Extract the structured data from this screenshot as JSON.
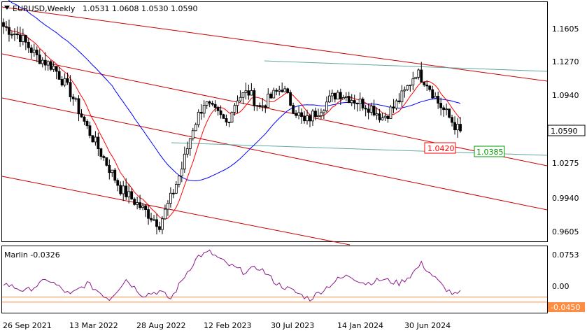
{
  "header": {
    "symbol": "EURUSD,Weekly",
    "ohlc": "1.0531 1.0608 1.0530 1.0590"
  },
  "indicator": {
    "label": "Marlin -0.0326"
  },
  "colors": {
    "candle": "#000000",
    "ma_red": "#ff0000",
    "ma_blue": "#0000ff",
    "channel": "#cc0000",
    "teal": "#5fa8a0",
    "oscillator": "#8b1a8b",
    "level_orange": "#ff8c40",
    "label_red": "#ff0000",
    "label_green": "#009900"
  },
  "chart_data": [
    {
      "type": "candlestick",
      "title": "EURUSD,Weekly 1.0531 1.0608 1.0530 1.0590",
      "x_ticks": [
        "26 Sep 2021",
        "13 Mar 2022",
        "28 Aug 2022",
        "12 Feb 2023",
        "30 Jul 2023",
        "14 Jan 2024",
        "30 Jun 2024"
      ],
      "y_ticks": [
        "1.1605",
        "1.1270",
        "1.0940",
        "1.0275",
        "0.9940",
        "0.9605"
      ],
      "ylim": [
        0.948,
        1.184
      ],
      "current_price": "1.0590",
      "annotations": [
        {
          "text": "1.0420",
          "color": "red"
        },
        {
          "text": "1.0385",
          "color": "green"
        }
      ],
      "close_path": [
        [
          0,
          1.16
        ],
        [
          6,
          1.15
        ],
        [
          12,
          1.13
        ],
        [
          18,
          1.12
        ],
        [
          24,
          1.095
        ],
        [
          30,
          1.06
        ],
        [
          36,
          1.03
        ],
        [
          42,
          1.0
        ],
        [
          48,
          0.985
        ],
        [
          52,
          0.975
        ],
        [
          56,
          0.965
        ],
        [
          60,
          0.99
        ],
        [
          64,
          1.02
        ],
        [
          68,
          1.06
        ],
        [
          72,
          1.085
        ],
        [
          76,
          1.075
        ],
        [
          80,
          1.065
        ],
        [
          84,
          1.09
        ],
        [
          88,
          1.095
        ],
        [
          92,
          1.08
        ],
        [
          96,
          1.09
        ],
        [
          100,
          1.1
        ],
        [
          104,
          1.08
        ],
        [
          108,
          1.065
        ],
        [
          112,
          1.075
        ],
        [
          116,
          1.085
        ],
        [
          120,
          1.095
        ],
        [
          124,
          1.09
        ],
        [
          128,
          1.085
        ],
        [
          132,
          1.08
        ],
        [
          136,
          1.07
        ],
        [
          140,
          1.08
        ],
        [
          144,
          1.095
        ],
        [
          148,
          1.115
        ],
        [
          152,
          1.105
        ],
        [
          156,
          1.085
        ],
        [
          160,
          1.07
        ],
        [
          164,
          1.055
        ]
      ]
    },
    {
      "type": "line",
      "title": "Marlin -0.0326",
      "y_ticks": [
        "0.0753",
        "0.00"
      ],
      "ylim": [
        -0.085,
        0.085
      ],
      "level": "-0.0450"
    }
  ]
}
